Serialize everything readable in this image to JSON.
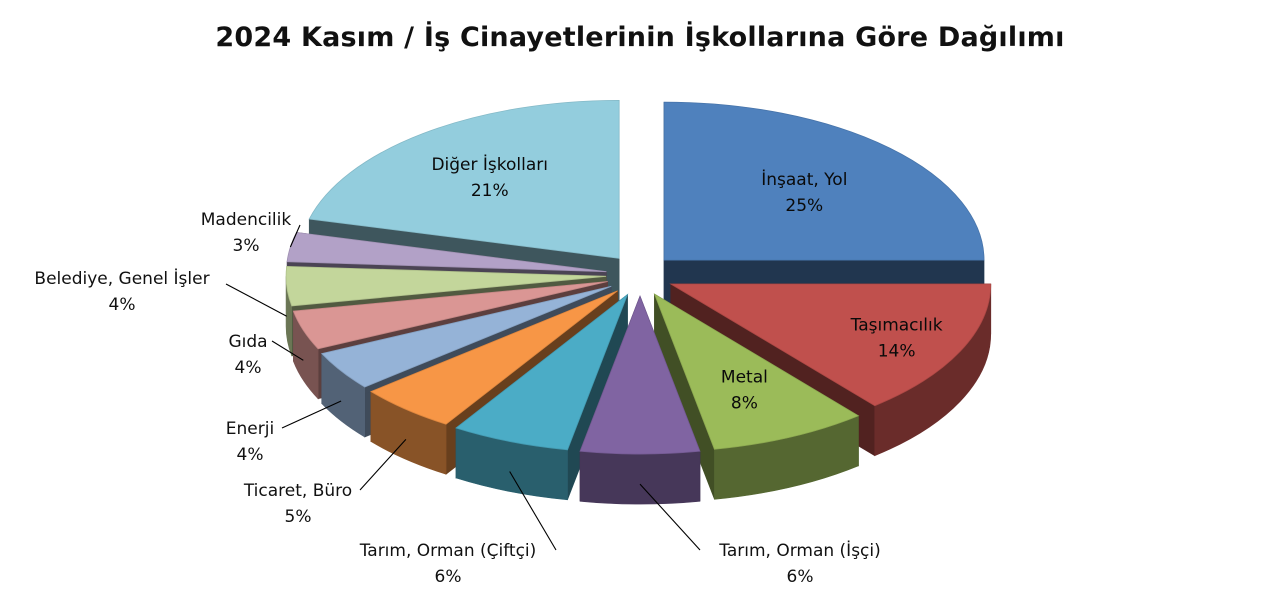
{
  "chart_data": {
    "type": "pie",
    "title": "2024 Kasım / İş Cinayetlerinin İşkollarına Göre Dağılımı",
    "slices": [
      {
        "label": "İnşaat, Yol",
        "value": 25,
        "value_label": "25%",
        "color": "#4F81BD"
      },
      {
        "label": "Taşımacılık",
        "value": 14,
        "value_label": "14%",
        "color": "#C0504D"
      },
      {
        "label": "Metal",
        "value": 8,
        "value_label": "8%",
        "color": "#9BBB59"
      },
      {
        "label": "Tarım, Orman (İşçi)",
        "value": 6,
        "value_label": "6%",
        "color": "#8064A2"
      },
      {
        "label": "Tarım, Orman (Çiftçi)",
        "value": 6,
        "value_label": "6%",
        "color": "#4BACC6"
      },
      {
        "label": "Ticaret, Büro",
        "value": 5,
        "value_label": "5%",
        "color": "#F79646"
      },
      {
        "label": "Enerji",
        "value": 4,
        "value_label": "4%",
        "color": "#95B3D7"
      },
      {
        "label": "Gıda",
        "value": 4,
        "value_label": "4%",
        "color": "#DA9694"
      },
      {
        "label": "Belediye, Genel İşler",
        "value": 4,
        "value_label": "4%",
        "color": "#C3D69B"
      },
      {
        "label": "Madencilik",
        "value": 3,
        "value_label": "3%",
        "color": "#B2A1C7"
      },
      {
        "label": "Diğer İşkolları",
        "value": 21,
        "value_label": "21%",
        "color": "#93CDDD"
      }
    ],
    "exploded": true,
    "style": "3d"
  }
}
